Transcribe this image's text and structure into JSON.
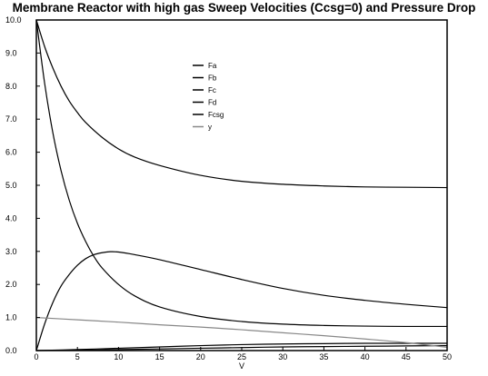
{
  "chart_data": {
    "type": "line",
    "title": "Membrane Reactor with high gas Sweep Velocities (Ccsg=0) and Pressure Drop",
    "xlabel": "V",
    "ylabel": "",
    "xlim": [
      0,
      50
    ],
    "ylim": [
      0,
      10
    ],
    "grid": false,
    "legend_position": "upper-middle",
    "x_ticks": [
      "0",
      "5",
      "10",
      "15",
      "20",
      "25",
      "30",
      "35",
      "40",
      "45",
      "50"
    ],
    "y_ticks": [
      "0.0",
      "1.0",
      "2.0",
      "3.0",
      "4.0",
      "5.0",
      "6.0",
      "7.0",
      "8.0",
      "9.0",
      "10.0"
    ],
    "series": [
      {
        "name": "Fa",
        "color": "#000000",
        "x": [
          0,
          1,
          2,
          3,
          4,
          5,
          6,
          8,
          10,
          12,
          15,
          20,
          25,
          30,
          35,
          40,
          45,
          50
        ],
        "y": [
          10.0,
          9.2,
          8.55,
          8.0,
          7.55,
          7.2,
          6.9,
          6.45,
          6.1,
          5.85,
          5.6,
          5.3,
          5.12,
          5.03,
          4.98,
          4.95,
          4.94,
          4.93
        ]
      },
      {
        "name": "Fb",
        "color": "#000000",
        "x": [
          0,
          1,
          2,
          3,
          4,
          5,
          6,
          7,
          8,
          10,
          12,
          15,
          20,
          25,
          30,
          35,
          40,
          45,
          50
        ],
        "y": [
          10.0,
          8.1,
          6.6,
          5.45,
          4.55,
          3.85,
          3.3,
          2.85,
          2.5,
          2.0,
          1.65,
          1.32,
          1.03,
          0.88,
          0.8,
          0.76,
          0.74,
          0.73,
          0.73
        ]
      },
      {
        "name": "Fc",
        "color": "#000000",
        "x": [
          0,
          1,
          2,
          3,
          4,
          5,
          6,
          7,
          8,
          9,
          10,
          12,
          15,
          20,
          25,
          30,
          35,
          40,
          45,
          50
        ],
        "y": [
          0.0,
          0.8,
          1.45,
          1.95,
          2.3,
          2.58,
          2.78,
          2.9,
          2.96,
          2.99,
          2.98,
          2.9,
          2.75,
          2.45,
          2.15,
          1.88,
          1.67,
          1.52,
          1.4,
          1.3
        ]
      },
      {
        "name": "Fd",
        "color": "#000000",
        "x": [
          0,
          5,
          10,
          15,
          20,
          25,
          30,
          35,
          40,
          45,
          50
        ],
        "y": [
          0.0,
          0.03,
          0.07,
          0.11,
          0.15,
          0.18,
          0.2,
          0.21,
          0.22,
          0.22,
          0.22
        ]
      },
      {
        "name": "Fcsg",
        "color": "#000000",
        "x": [
          0,
          5,
          10,
          15,
          20,
          25,
          30,
          35,
          40,
          45,
          50
        ],
        "y": [
          0.0,
          0.01,
          0.03,
          0.05,
          0.07,
          0.09,
          0.11,
          0.12,
          0.13,
          0.14,
          0.15
        ]
      },
      {
        "name": "y",
        "color": "#888888",
        "x": [
          0,
          5,
          10,
          15,
          20,
          25,
          30,
          35,
          40,
          45,
          50
        ],
        "y": [
          1.0,
          0.93,
          0.86,
          0.78,
          0.71,
          0.63,
          0.54,
          0.45,
          0.35,
          0.24,
          0.1
        ]
      }
    ]
  }
}
